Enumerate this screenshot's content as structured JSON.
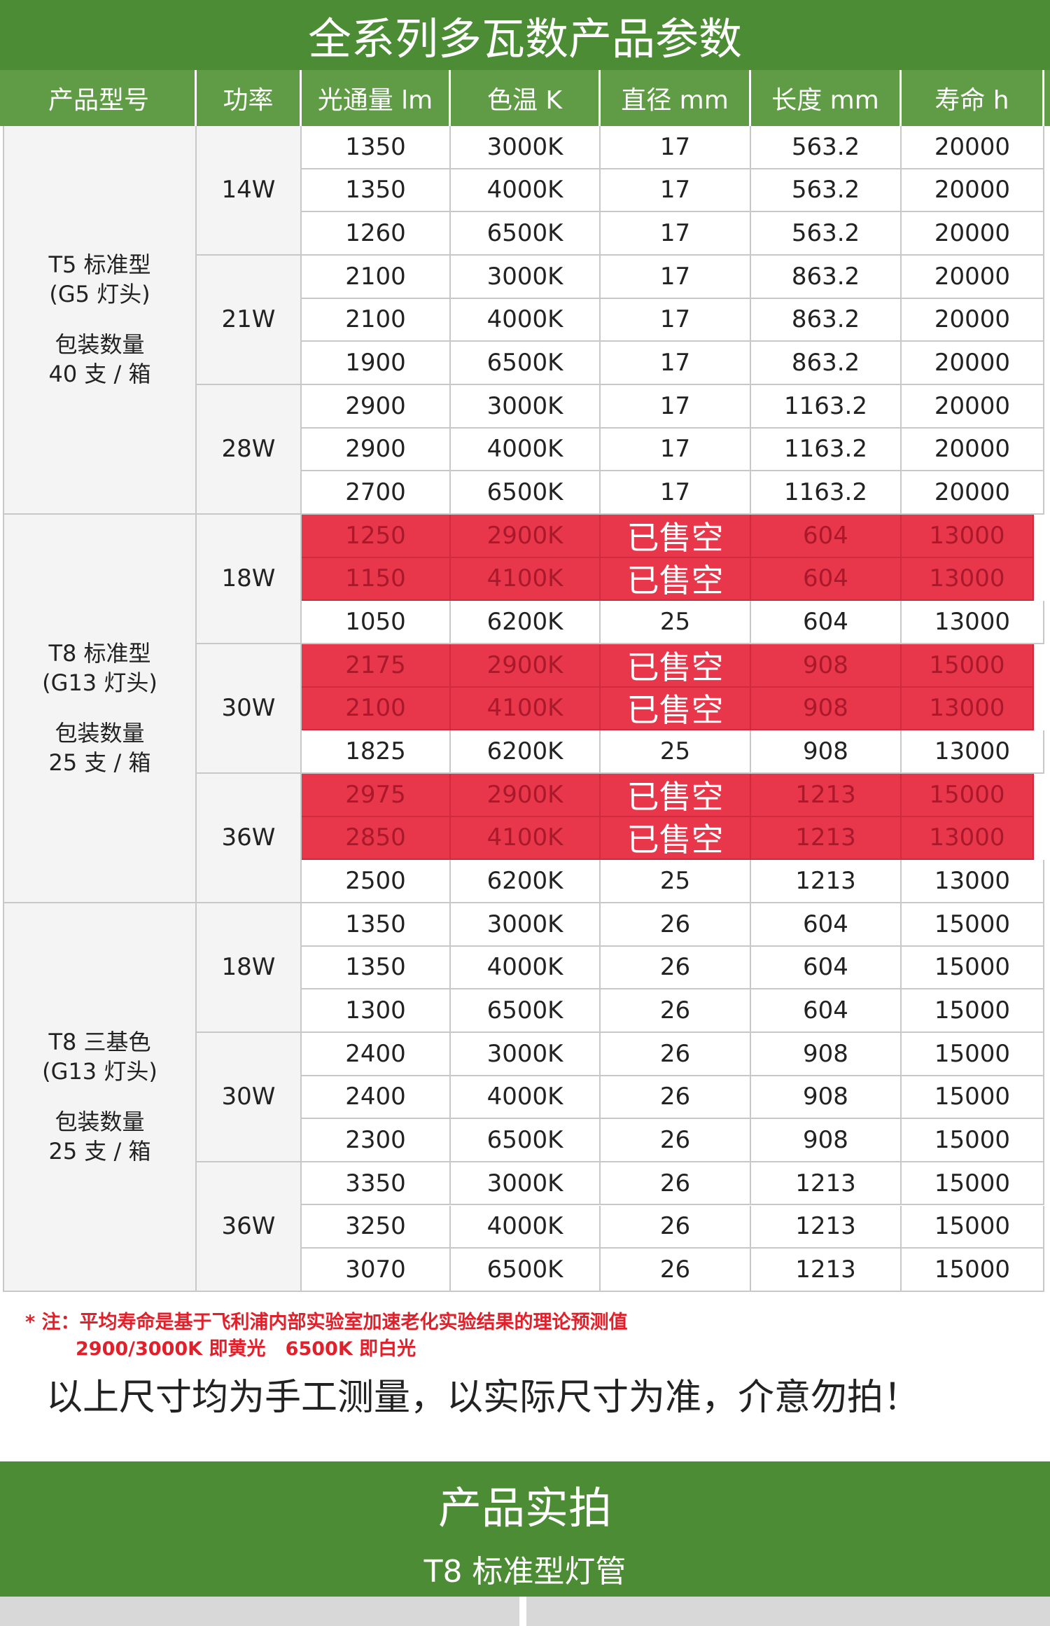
{
  "header": {
    "title": "全系列多瓦数产品参数"
  },
  "table": {
    "headers": [
      "产品型号",
      "功率",
      "光通量 lm",
      "色温 K",
      "直径 mm",
      "长度 mm",
      "寿命 h"
    ],
    "groups": [
      {
        "name": "T5 标准型",
        "base": "(G5 灯头)",
        "pack_label": "包装数量",
        "pack": "40 支 / 箱",
        "powers": [
          {
            "watt": "14W",
            "rows": [
              {
                "cells": [
                  "1350",
                  "3000K",
                  "17",
                  "563.2",
                  "20000"
                ]
              },
              {
                "cells": [
                  "1350",
                  "4000K",
                  "17",
                  "563.2",
                  "20000"
                ]
              },
              {
                "cells": [
                  "1260",
                  "6500K",
                  "17",
                  "563.2",
                  "20000"
                ]
              }
            ]
          },
          {
            "watt": "21W",
            "rows": [
              {
                "cells": [
                  "2100",
                  "3000K",
                  "17",
                  "863.2",
                  "20000"
                ]
              },
              {
                "cells": [
                  "2100",
                  "4000K",
                  "17",
                  "863.2",
                  "20000"
                ]
              },
              {
                "cells": [
                  "1900",
                  "6500K",
                  "17",
                  "863.2",
                  "20000"
                ]
              }
            ]
          },
          {
            "watt": "28W",
            "rows": [
              {
                "cells": [
                  "2900",
                  "3000K",
                  "17",
                  "1163.2",
                  "20000"
                ]
              },
              {
                "cells": [
                  "2900",
                  "4000K",
                  "17",
                  "1163.2",
                  "20000"
                ]
              },
              {
                "cells": [
                  "2700",
                  "6500K",
                  "17",
                  "1163.2",
                  "20000"
                ]
              }
            ]
          }
        ]
      },
      {
        "name": "T8 标准型",
        "base": "(G13 灯头)",
        "pack_label": "包装数量",
        "pack": "25 支 / 箱",
        "powers": [
          {
            "watt": "18W",
            "rows": [
              {
                "sold_out": true,
                "cells": [
                  "1250",
                  "2900K",
                  "已售空",
                  "604",
                  "13000"
                ]
              },
              {
                "sold_out": true,
                "cells": [
                  "1150",
                  "4100K",
                  "已售空",
                  "604",
                  "13000"
                ]
              },
              {
                "cells": [
                  "1050",
                  "6200K",
                  "25",
                  "604",
                  "13000"
                ]
              }
            ]
          },
          {
            "watt": "30W",
            "rows": [
              {
                "sold_out": true,
                "cells": [
                  "2175",
                  "2900K",
                  "已售空",
                  "908",
                  "15000"
                ]
              },
              {
                "sold_out": true,
                "cells": [
                  "2100",
                  "4100K",
                  "已售空",
                  "908",
                  "13000"
                ]
              },
              {
                "cells": [
                  "1825",
                  "6200K",
                  "25",
                  "908",
                  "13000"
                ]
              }
            ]
          },
          {
            "watt": "36W",
            "rows": [
              {
                "sold_out": true,
                "cells": [
                  "2975",
                  "2900K",
                  "已售空",
                  "1213",
                  "15000"
                ]
              },
              {
                "sold_out": true,
                "cells": [
                  "2850",
                  "4100K",
                  "已售空",
                  "1213",
                  "13000"
                ]
              },
              {
                "cells": [
                  "2500",
                  "6200K",
                  "25",
                  "1213",
                  "13000"
                ]
              }
            ]
          }
        ]
      },
      {
        "name": "T8 三基色",
        "base": "(G13 灯头)",
        "pack_label": "包装数量",
        "pack": "25 支 / 箱",
        "powers": [
          {
            "watt": "18W",
            "rows": [
              {
                "cells": [
                  "1350",
                  "3000K",
                  "26",
                  "604",
                  "15000"
                ]
              },
              {
                "cells": [
                  "1350",
                  "4000K",
                  "26",
                  "604",
                  "15000"
                ]
              },
              {
                "cells": [
                  "1300",
                  "6500K",
                  "26",
                  "604",
                  "15000"
                ]
              }
            ]
          },
          {
            "watt": "30W",
            "rows": [
              {
                "cells": [
                  "2400",
                  "3000K",
                  "26",
                  "908",
                  "15000"
                ]
              },
              {
                "cells": [
                  "2400",
                  "4000K",
                  "26",
                  "908",
                  "15000"
                ]
              },
              {
                "cells": [
                  "2300",
                  "6500K",
                  "26",
                  "908",
                  "15000"
                ]
              }
            ]
          },
          {
            "watt": "36W",
            "rows": [
              {
                "cells": [
                  "3350",
                  "3000K",
                  "26",
                  "1213",
                  "15000"
                ]
              },
              {
                "cells": [
                  "3250",
                  "4000K",
                  "26",
                  "1213",
                  "15000"
                ]
              },
              {
                "cells": [
                  "3070",
                  "6500K",
                  "26",
                  "1213",
                  "15000"
                ]
              }
            ]
          }
        ]
      }
    ]
  },
  "notes": {
    "line1": "* 注：平均寿命是基于飞利浦内部实验室加速老化实验结果的理论预测值",
    "line2": "2900/3000K 即黄光   6500K 即白光",
    "disclaimer": "以上尺寸均为手工测量，以实际尺寸为准，介意勿拍！"
  },
  "section": {
    "title": "产品实拍",
    "subtitle": "T8 标准型灯管"
  }
}
